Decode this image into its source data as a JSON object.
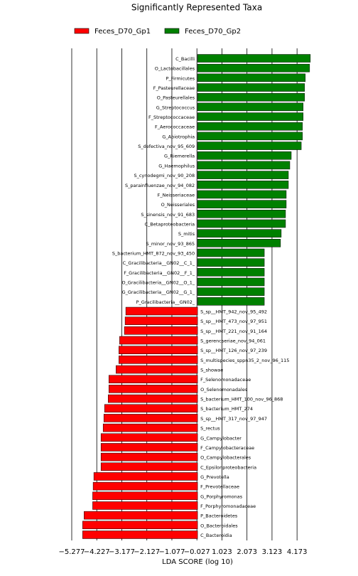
{
  "chart_data": {
    "type": "hbar",
    "title": "Significantly Represented Taxa",
    "xlabel": "LDA SCORE (log 10)",
    "xlim": [
      -5.277,
      5.3
    ],
    "xticks": [
      {
        "value": -5.277,
        "label": "−5.277"
      },
      {
        "value": -4.227,
        "label": "−4.227"
      },
      {
        "value": -3.177,
        "label": "−3.177"
      },
      {
        "value": -2.127,
        "label": "−2.127"
      },
      {
        "value": -1.077,
        "label": "−1.077"
      },
      {
        "value": -0.027,
        "label": "−0.027"
      },
      1.023,
      2.073,
      3.123,
      4.173
    ],
    "grid": true,
    "series": [
      {
        "name": "Feces_D70_Gp1",
        "color": "#ff0000",
        "categories": [
          "S_sp__HMT_942_nov_95_492",
          "S_sp__HMT_473_nov_97_951",
          "S_sp__HMT_221_nov_91_164",
          "S_gerencseriae_nov_94_061",
          "S_sp__HMT_126_nov_97_239",
          "S_multispecies_sppn35_2_nov_96_115",
          "S_showae",
          "F_Selenomonadaceae",
          "O_Selenomonadales",
          "S_bacterium_HMT_100_nov_96_868",
          "S_bacterium_HMT_274",
          "S_sp__HMT_317_nov_97_947",
          "S_rectus",
          "G_Campylobacter",
          "F_Campylobacteraceae",
          "O_Campylobacterales",
          "C_Epsilonproteobacteria",
          "G_Prevotella",
          "F_Prevotellaceae",
          "G_Porphyromonas",
          "F_Porphyromonadaceae",
          "P_Bacteroidetes",
          "O_Bacteroidales",
          "C_Bacteroidia"
        ],
        "values": [
          -3.01,
          -3.04,
          -3.07,
          -3.27,
          -3.3,
          -3.3,
          -3.42,
          -3.72,
          -3.72,
          -3.75,
          -3.9,
          -3.93,
          -3.96,
          -4.05,
          -4.05,
          -4.05,
          -4.05,
          -4.35,
          -4.38,
          -4.4,
          -4.4,
          -4.76,
          -4.82,
          -4.82
        ]
      },
      {
        "name": "Feces_D70_Gp2",
        "color": "#008000",
        "categories": [
          "C_Bacilli",
          "O_Lactobacillales",
          "P_Firmicutes",
          "F_Pasteurellaceae",
          "O_Pasteurellales",
          "G_Streptococcus",
          "F_Streptococcaceae",
          "F_Aerococcaceae",
          "G_Abiotrophia",
          "S_defectiva_nov_95_609",
          "G_Riemerella",
          "G_Haemophilus",
          "S_cynodegmi_nov_90_208",
          "S_parainfluenzae_nov_94_082",
          "F_Neisseriaceae",
          "O_Neisseriales",
          "S_sinensis_nov_91_683",
          "C_Betaproteobacteria",
          "S_mitis",
          "S_minor_nov_93_865",
          "S_bacterium_HMT_872_nov_93_450",
          "C_Gracilibacteria__GN02__C_1_",
          "F_Gracilibacteria__GN02__F_1_",
          "O_Gracilibacteria__GN02__O_1_",
          "G_Gracilibacteria__GN02__G_1_",
          "P_Gracilibacteria__GN02_"
        ],
        "values": [
          4.73,
          4.7,
          4.52,
          4.49,
          4.49,
          4.43,
          4.43,
          4.4,
          4.4,
          4.35,
          3.93,
          3.87,
          3.81,
          3.81,
          3.72,
          3.72,
          3.69,
          3.69,
          3.51,
          3.48,
          2.8,
          2.8,
          2.8,
          2.8,
          2.8,
          2.8
        ]
      }
    ]
  }
}
